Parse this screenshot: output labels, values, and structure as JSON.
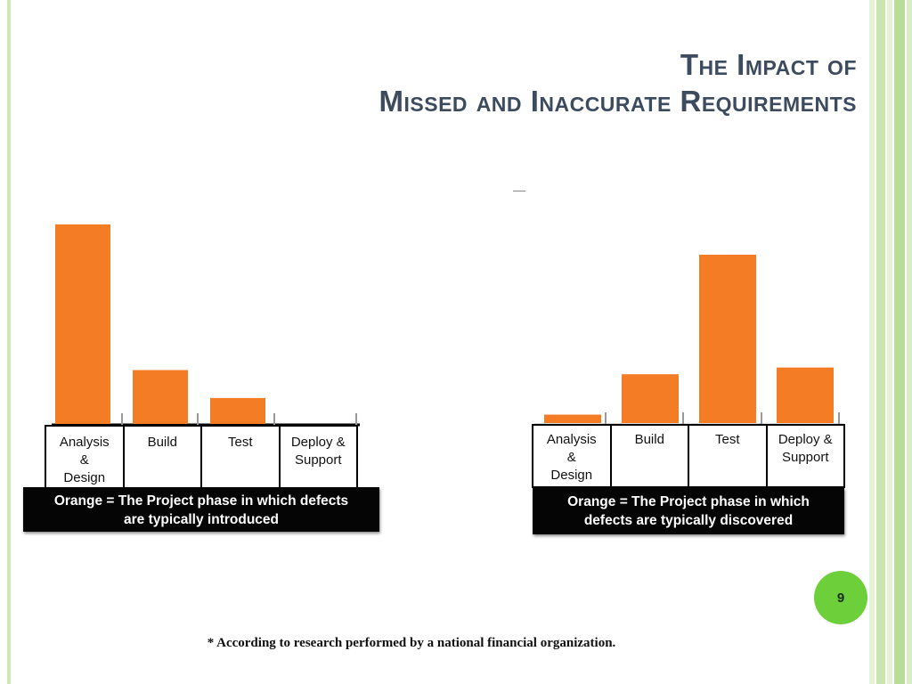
{
  "title": {
    "line1": "The Impact of",
    "line2": "Missed and Inaccurate Requirements"
  },
  "colors": {
    "bar": "#f47c24",
    "accent_green": "#6dcf3a",
    "title": "#3d4b5f"
  },
  "chart_data": [
    {
      "type": "bar",
      "categories": [
        "Analysis & Design",
        "Build",
        "Test",
        "Deploy & Support"
      ],
      "values": [
        100,
        27,
        13,
        0
      ],
      "ylim": [
        0,
        100
      ],
      "legend": "Orange = The Project phase in which defects are typically introduced"
    },
    {
      "type": "bar",
      "categories": [
        "Analysis & Design",
        "Build",
        "Test",
        "Deploy & Support"
      ],
      "values": [
        5,
        29,
        100,
        33
      ],
      "ylim": [
        0,
        100
      ],
      "legend": "Orange = The Project phase in which defects are typically discovered"
    }
  ],
  "labels": {
    "cells": [
      "Analysis\n&\nDesign",
      "Build",
      "Test",
      "Deploy &\nSupport"
    ],
    "legend_left": "Orange = The Project phase in which defects\nare typically introduced",
    "legend_right": "Orange = The Project phase in which\ndefects are typically discovered"
  },
  "page_number": "9",
  "footnote": "* According to research performed by a national financial organization."
}
